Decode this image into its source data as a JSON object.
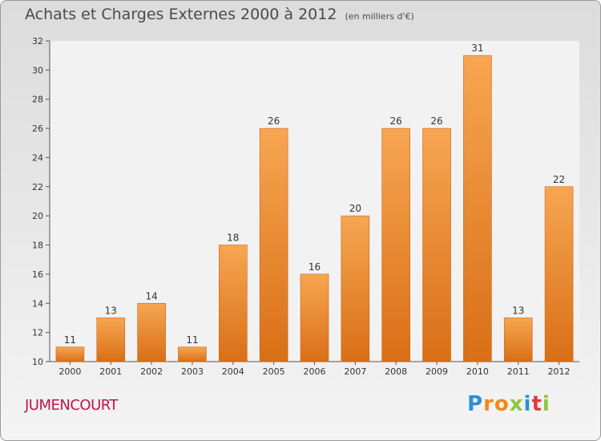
{
  "chart_data": {
    "type": "bar",
    "title": "Achats et Charges Externes 2000 à 2012",
    "subtitle": "(en milliers d'€)",
    "categories": [
      "2000",
      "2001",
      "2002",
      "2003",
      "2004",
      "2005",
      "2006",
      "2007",
      "2008",
      "2009",
      "2010",
      "2011",
      "2012"
    ],
    "values": [
      11,
      13,
      14,
      11,
      18,
      26,
      16,
      20,
      26,
      26,
      31,
      13,
      22
    ],
    "ylim": [
      10,
      32
    ],
    "yticks": [
      10,
      12,
      14,
      16,
      18,
      20,
      22,
      24,
      26,
      28,
      30,
      32
    ],
    "xlabel": "",
    "ylabel": "",
    "grid": false,
    "bar_color_top": "#f7a652",
    "bar_color_bottom": "#d96f16"
  },
  "footer": {
    "commune": "JUMENCOURT",
    "logo_letters": [
      "P",
      "r",
      "o",
      "x",
      "i",
      "t",
      "i"
    ],
    "logo_colors": [
      "#2f8fd6",
      "#f08a1c",
      "#f08a1c",
      "#8dc63f",
      "#2f8fd6",
      "#e33b3b",
      "#8dc63f"
    ]
  }
}
